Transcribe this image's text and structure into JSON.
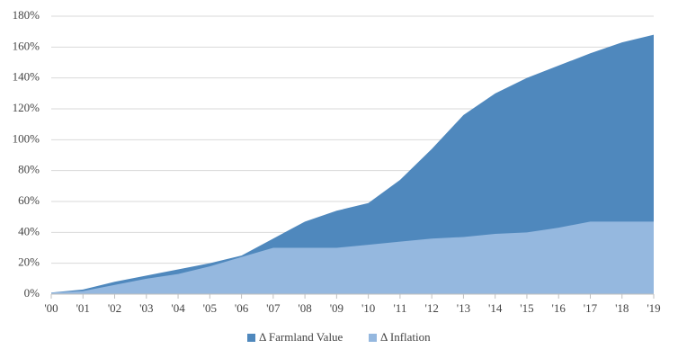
{
  "chart_data": {
    "type": "area",
    "categories": [
      "'00",
      "'01",
      "'02",
      "'03",
      "'04",
      "'05",
      "'06",
      "'07",
      "'08",
      "'09",
      "'10",
      "'11",
      "'12",
      "'13",
      "'14",
      "'15",
      "'16",
      "'17",
      "'18",
      "'19"
    ],
    "series": [
      {
        "name": "Δ Farmland Value",
        "color": "#4f88bd",
        "values": [
          1,
          3,
          8,
          12,
          16,
          20,
          25,
          36,
          47,
          54,
          59,
          74,
          94,
          116,
          130,
          140,
          148,
          156,
          163,
          168
        ]
      },
      {
        "name": "Δ Inflation",
        "color": "#95b8df",
        "values": [
          1,
          2,
          6,
          10,
          13,
          18,
          24,
          30,
          30,
          30,
          32,
          34,
          36,
          37,
          39,
          40,
          43,
          47,
          47,
          47
        ]
      }
    ],
    "ylim": [
      0,
      180
    ],
    "yticks": [
      {
        "value": 0,
        "label": "0%"
      },
      {
        "value": 20,
        "label": "20%"
      },
      {
        "value": 40,
        "label": "40%"
      },
      {
        "value": 60,
        "label": "60%"
      },
      {
        "value": 80,
        "label": "80%"
      },
      {
        "value": 100,
        "label": "100%"
      },
      {
        "value": 120,
        "label": "120%"
      },
      {
        "value": 140,
        "label": "140%"
      },
      {
        "value": 160,
        "label": "160%"
      },
      {
        "value": 180,
        "label": "180%"
      }
    ],
    "grid": true,
    "legend": "bottom"
  }
}
